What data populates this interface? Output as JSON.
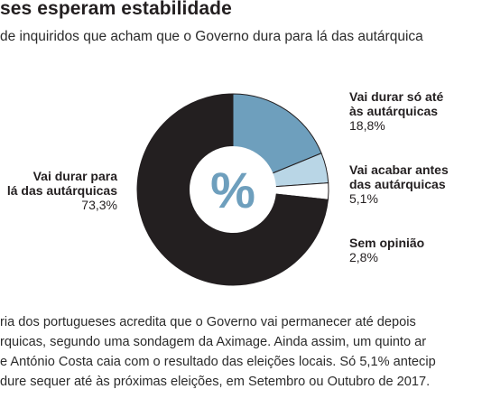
{
  "header": {
    "title": "ses esperam estabilidade",
    "subtitle": "de inquiridos que acham que o Governo dura para lá das autárquica"
  },
  "chart_data": {
    "type": "pie",
    "variant": "donut",
    "center_label": "%",
    "colors": {
      "track": "#231f20",
      "accent": "#6e9fbd",
      "accent_light": "#b9d6e6",
      "neutral": "#ffffff",
      "center_text": "#6e9fbd"
    },
    "slices": [
      {
        "label_lines": [
          "Vai durar só até",
          "às autárquicas"
        ],
        "value": 18.8,
        "value_label": "18,8%",
        "color": "#6e9fbd"
      },
      {
        "label_lines": [
          "Vai acabar antes",
          "das autárquicas"
        ],
        "value": 5.1,
        "value_label": "5,1%",
        "color": "#b9d6e6"
      },
      {
        "label_lines": [
          "Sem opinião"
        ],
        "value": 2.8,
        "value_label": "2,8%",
        "color": "#ffffff"
      },
      {
        "label_lines": [
          "Vai durar para",
          "lá das autárquicas"
        ],
        "value": 73.3,
        "value_label": "73,3%",
        "color": "#231f20"
      }
    ]
  },
  "body": {
    "lines": [
      "ria dos portugueses acredita que o Governo vai permanecer até depois",
      "rquicas, segundo uma sondagem da Aximage. Ainda assim, um quinto ar",
      "e António Costa caia com o resultado das eleições locais. Só 5,1% antecip",
      "dure sequer até às próximas eleições, em Setembro ou Outubro de 2017."
    ]
  }
}
